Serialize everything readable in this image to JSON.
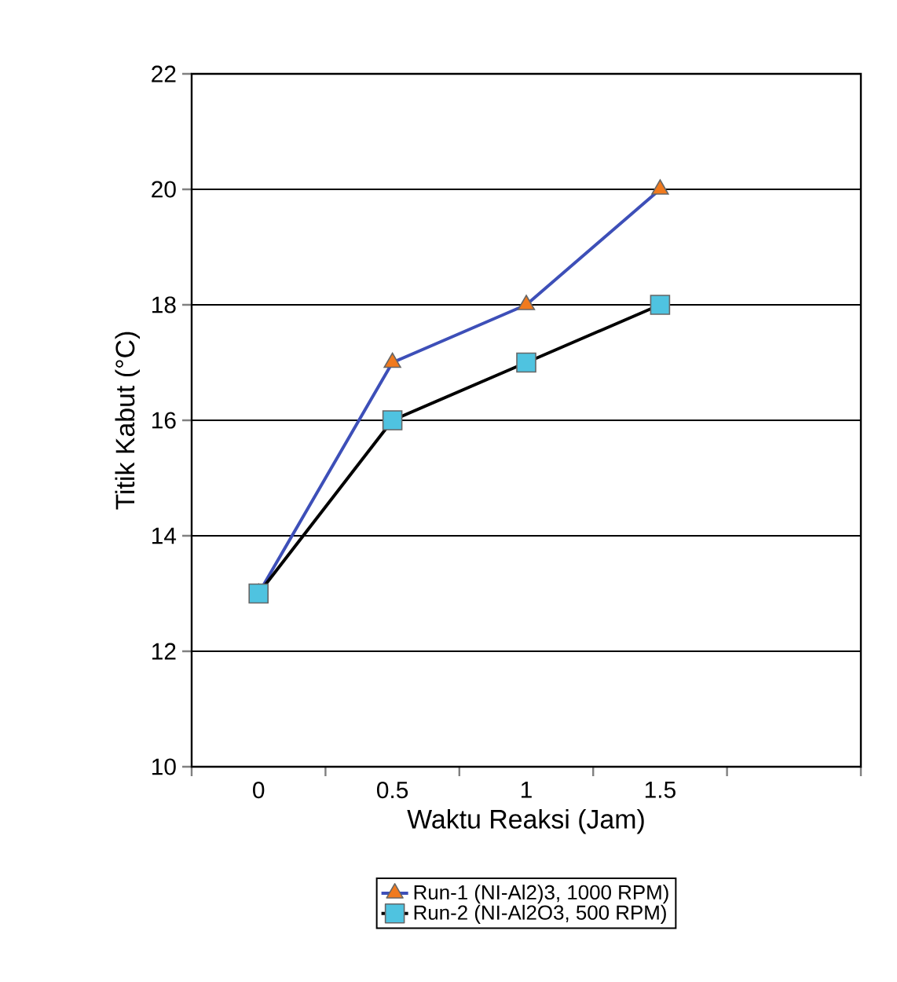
{
  "chart_data": {
    "type": "line",
    "xlabel": "Waktu Reaksi (Jam)",
    "ylabel": "Titik Kabut (°C)",
    "categories": [
      "0",
      "0.5",
      "1",
      "1.5",
      null
    ],
    "series": [
      {
        "name": "Run-1 (NI-Al2)3, 1000 RPM)",
        "color": "#3d4fb8",
        "colors": [
          "#f07a1e",
          "#f07a1e",
          "#f07a1e",
          "#f07a1e",
          "#f07a1e"
        ],
        "marker": "triangle",
        "values": [
          13,
          17,
          18,
          20,
          null
        ]
      },
      {
        "name": "Run-2 (NI-Al2O3, 500 RPM)",
        "color": "#000000",
        "colors": [
          "#4fc3e0",
          "#4fc3e0",
          "#4fc3e0",
          "#4fc3e0",
          "#4fc3e0"
        ],
        "marker": "square",
        "values": [
          13,
          16,
          17,
          18,
          null
        ]
      }
    ],
    "ylim": [
      10,
      22
    ],
    "yticks": [
      10,
      12,
      14,
      16,
      18,
      20,
      22
    ],
    "grid": "y",
    "legend": "bottom"
  }
}
